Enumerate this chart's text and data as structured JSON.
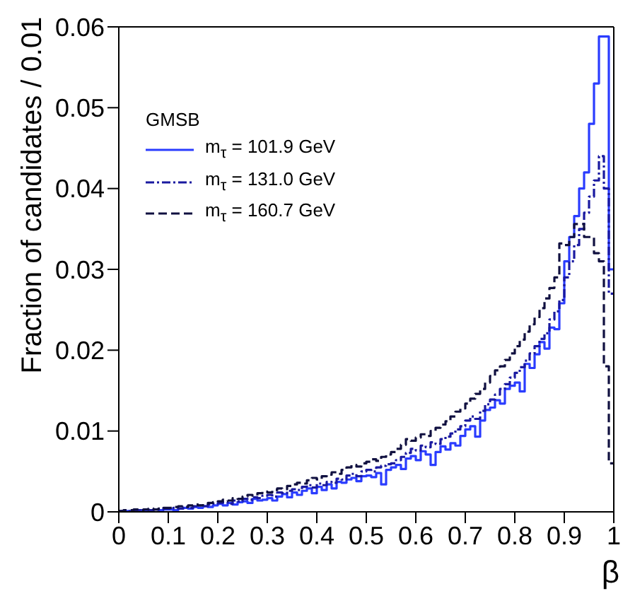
{
  "chart_data": {
    "type": "histogram",
    "xlabel": "β",
    "ylabel": "Fraction of candidates / 0.01",
    "legend_title": "GMSB",
    "legend": "top left",
    "xlim": [
      0,
      1
    ],
    "ylim": [
      0,
      0.06
    ],
    "xticks": [
      0,
      0.1,
      0.2,
      0.3,
      0.4,
      0.5,
      0.6,
      0.7,
      0.8,
      0.9,
      1
    ],
    "yticks": [
      0,
      0.01,
      0.02,
      0.03,
      0.04,
      0.05,
      0.06
    ],
    "bins": [
      0,
      0.01,
      0.02,
      0.03,
      0.04,
      0.05,
      0.06,
      0.07,
      0.08,
      0.09,
      0.1,
      0.11,
      0.12,
      0.13,
      0.14,
      0.15,
      0.16,
      0.17,
      0.18,
      0.19,
      0.2,
      0.21,
      0.22,
      0.23,
      0.24,
      0.25,
      0.26,
      0.27,
      0.28,
      0.29,
      0.3,
      0.31,
      0.32,
      0.33,
      0.34,
      0.35,
      0.36,
      0.37,
      0.38,
      0.39,
      0.4,
      0.41,
      0.42,
      0.43,
      0.44,
      0.45,
      0.46,
      0.47,
      0.48,
      0.49,
      0.5,
      0.51,
      0.52,
      0.53,
      0.54,
      0.55,
      0.56,
      0.57,
      0.58,
      0.59,
      0.6,
      0.61,
      0.62,
      0.63,
      0.64,
      0.65,
      0.66,
      0.67,
      0.68,
      0.69,
      0.7,
      0.71,
      0.72,
      0.73,
      0.74,
      0.75,
      0.76,
      0.77,
      0.78,
      0.79,
      0.8,
      0.81,
      0.82,
      0.83,
      0.84,
      0.85,
      0.86,
      0.87,
      0.88,
      0.89,
      0.9,
      0.91,
      0.92,
      0.93,
      0.94,
      0.95,
      0.96,
      0.97,
      0.98,
      0.99,
      1
    ],
    "series": [
      {
        "name": "m$_{τ}$ = 101.9 GeV",
        "color": "#2a3cff",
        "line_style": "solid",
        "values": [
          0.0001,
          0.0001,
          0.0001,
          0.0002,
          0.0002,
          0.0001,
          0.0002,
          0.0003,
          0.0002,
          0.0003,
          0.0003,
          0.0002,
          0.0004,
          0.0005,
          0.0004,
          0.0006,
          0.0005,
          0.0007,
          0.0006,
          0.0008,
          0.001,
          0.0008,
          0.0011,
          0.0009,
          0.0012,
          0.0013,
          0.0011,
          0.0016,
          0.0014,
          0.0015,
          0.0017,
          0.0014,
          0.0019,
          0.0022,
          0.0018,
          0.0024,
          0.0021,
          0.0026,
          0.0029,
          0.0023,
          0.0031,
          0.0027,
          0.0034,
          0.0029,
          0.0037,
          0.0036,
          0.004,
          0.0042,
          0.0038,
          0.0044,
          0.0045,
          0.0043,
          0.0048,
          0.0034,
          0.0052,
          0.0055,
          0.0058,
          0.0053,
          0.0066,
          0.0069,
          0.0064,
          0.0075,
          0.0071,
          0.0058,
          0.0074,
          0.0081,
          0.0077,
          0.0085,
          0.0082,
          0.0094,
          0.0102,
          0.0106,
          0.0093,
          0.0113,
          0.0126,
          0.0129,
          0.0138,
          0.0134,
          0.0152,
          0.0156,
          0.016,
          0.0149,
          0.0183,
          0.0178,
          0.0195,
          0.021,
          0.0202,
          0.0228,
          0.0226,
          0.0258,
          0.031,
          0.034,
          0.0366,
          0.04,
          0.042,
          0.048,
          0.053,
          0.0588,
          0.0588,
          0.03
        ]
      },
      {
        "name": "m$_{τ}$ = 131.0 GeV",
        "color": "#1a1aa0",
        "line_style": "dashdot",
        "values": [
          0.0001,
          0.0002,
          0.0001,
          0.0002,
          0.0002,
          0.0003,
          0.0002,
          0.0003,
          0.0003,
          0.0004,
          0.0004,
          0.0005,
          0.0004,
          0.0006,
          0.0005,
          0.0007,
          0.0008,
          0.0007,
          0.0009,
          0.001,
          0.0011,
          0.0012,
          0.001,
          0.0014,
          0.0013,
          0.0016,
          0.0015,
          0.0018,
          0.0017,
          0.002,
          0.0021,
          0.0019,
          0.0024,
          0.0023,
          0.0026,
          0.0028,
          0.0027,
          0.0031,
          0.0033,
          0.003,
          0.0035,
          0.0033,
          0.0037,
          0.0036,
          0.0041,
          0.004,
          0.0045,
          0.0047,
          0.0044,
          0.005,
          0.0052,
          0.005,
          0.0055,
          0.0057,
          0.0059,
          0.006,
          0.0064,
          0.0068,
          0.0073,
          0.0078,
          0.0076,
          0.0082,
          0.008,
          0.0086,
          0.0084,
          0.009,
          0.0093,
          0.0097,
          0.0102,
          0.0106,
          0.0113,
          0.0118,
          0.0115,
          0.0125,
          0.0133,
          0.0139,
          0.0145,
          0.0152,
          0.0158,
          0.0166,
          0.0172,
          0.0179,
          0.0187,
          0.0196,
          0.0205,
          0.0214,
          0.0221,
          0.0238,
          0.0248,
          0.0262,
          0.029,
          0.031,
          0.033,
          0.035,
          0.037,
          0.039,
          0.041,
          0.044,
          0.04,
          0.027
        ]
      },
      {
        "name": "m$_{τ}$ = 160.7 GeV",
        "color": "#101040",
        "line_style": "dashed",
        "values": [
          0.0001,
          0.0002,
          0.0002,
          0.0003,
          0.0002,
          0.0003,
          0.0004,
          0.0003,
          0.0004,
          0.0005,
          0.0005,
          0.0006,
          0.0007,
          0.0006,
          0.0008,
          0.0009,
          0.0008,
          0.001,
          0.0011,
          0.0012,
          0.0013,
          0.0015,
          0.0014,
          0.0017,
          0.0016,
          0.0019,
          0.0021,
          0.002,
          0.0023,
          0.0025,
          0.0024,
          0.0027,
          0.0029,
          0.0028,
          0.0032,
          0.0034,
          0.0036,
          0.0035,
          0.0039,
          0.0042,
          0.004,
          0.0044,
          0.0046,
          0.0049,
          0.0047,
          0.0052,
          0.0055,
          0.0058,
          0.0056,
          0.006,
          0.0062,
          0.0065,
          0.0063,
          0.0068,
          0.0071,
          0.0074,
          0.0078,
          0.0083,
          0.009,
          0.0088,
          0.0092,
          0.0096,
          0.0094,
          0.01,
          0.0104,
          0.0108,
          0.0112,
          0.0118,
          0.0124,
          0.0128,
          0.0134,
          0.014,
          0.0146,
          0.0152,
          0.016,
          0.0168,
          0.0175,
          0.018,
          0.0188,
          0.0196,
          0.0205,
          0.0213,
          0.0223,
          0.0232,
          0.0241,
          0.0252,
          0.0264,
          0.0277,
          0.029,
          0.0332,
          0.033,
          0.034,
          0.0356,
          0.0356,
          0.034,
          0.034,
          0.032,
          0.031,
          0.018,
          0.006
        ]
      }
    ]
  }
}
